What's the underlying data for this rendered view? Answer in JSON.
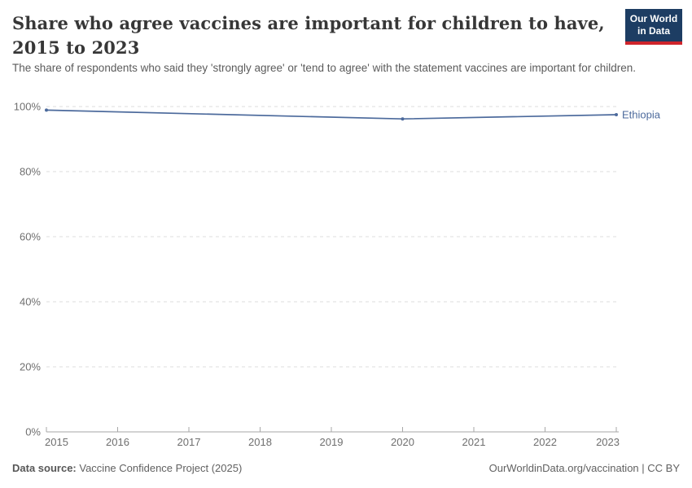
{
  "header": {
    "title": "Share who agree vaccines are important for children to have, 2015 to 2023",
    "subtitle": "The share of respondents who said they 'strongly agree' or 'tend to agree' with the statement vaccines are important for children.",
    "logo": {
      "line1": "Our World",
      "line2": "in Data",
      "bg_color": "#1d3d63",
      "accent_color": "#cf242b"
    }
  },
  "chart_data": {
    "type": "line",
    "title": "Share who agree vaccines are important for children to have, 2015 to 2023",
    "xlabel": "",
    "ylabel": "",
    "xlim": [
      2015,
      2023
    ],
    "ylim": [
      0,
      100
    ],
    "x_ticks": [
      2015,
      2016,
      2017,
      2018,
      2019,
      2020,
      2021,
      2022,
      2023
    ],
    "y_ticks": [
      "0%",
      "20%",
      "40%",
      "60%",
      "80%",
      "100%"
    ],
    "grid": "horizontal-dashed",
    "legend_position": "end-of-line-label",
    "series": [
      {
        "name": "Ethiopia",
        "color": "#4c6a9c",
        "x": [
          2015,
          2020,
          2023
        ],
        "values": [
          98.9,
          96.2,
          97.5
        ]
      }
    ]
  },
  "footer": {
    "datasource_label": "Data source:",
    "datasource_value": "Vaccine Confidence Project (2025)",
    "link": "OurWorldinData.org/vaccination",
    "separator": " | ",
    "license": "CC BY"
  }
}
